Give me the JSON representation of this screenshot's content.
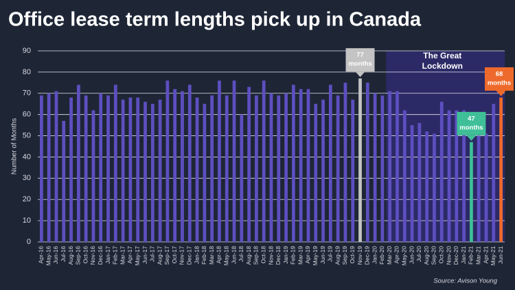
{
  "chart_data": {
    "type": "bar",
    "title": "Office lease term lengths pick up in Canada",
    "y_label": "Number of Months",
    "source": "Source: Avison Young",
    "categories": [
      "Apr-16",
      "May-16",
      "Jun-16",
      "Jul-16",
      "Aug-16",
      "Sep-16",
      "Oct-16",
      "Nov-16",
      "Dec-16",
      "Jan-17",
      "Feb-17",
      "Mar-17",
      "Apr-17",
      "May-17",
      "Jun-17",
      "Jul-17",
      "Aug-17",
      "Sep-17",
      "Oct-17",
      "Nov-17",
      "Dec-17",
      "Jan-18",
      "Feb-18",
      "Mar-18",
      "Apr-18",
      "May-18",
      "Jun-18",
      "Jul-18",
      "Aug-18",
      "Sep-18",
      "Oct-18",
      "Nov-18",
      "Dec-18",
      "Jan-19",
      "Feb-19",
      "Mar-19",
      "Apr-19",
      "May-19",
      "Jun-19",
      "Jul-19",
      "Aug-19",
      "Sep-19",
      "Oct-19",
      "Nov-19",
      "Dec-19",
      "Jan-20",
      "Feb-20",
      "Mar-20",
      "Apr-20",
      "May-20",
      "Jun-20",
      "Jul-20",
      "Aug-20",
      "Sep-20",
      "Oct-20",
      "Nov-20",
      "Dec-20",
      "Jan-21",
      "Feb-21",
      "Mar-21",
      "Apr-21",
      "May-21",
      "Jun-21"
    ],
    "values": [
      69,
      70,
      71,
      57,
      68,
      74,
      69,
      62,
      70,
      69,
      74,
      67,
      68,
      68,
      66,
      65,
      67,
      76,
      72,
      71,
      74,
      68,
      65,
      69,
      76,
      69,
      76,
      60,
      73,
      69,
      76,
      70,
      69,
      70,
      74,
      72,
      72,
      65,
      67,
      74,
      69,
      75,
      67,
      77,
      75,
      70,
      69,
      71,
      71,
      62,
      55,
      56,
      52,
      51,
      66,
      62,
      62,
      62,
      47,
      50,
      51,
      65,
      68
    ],
    "color": "#5d4fc0",
    "highlights": [
      {
        "category": "Nov-19",
        "color": "#c4c4c4",
        "text": [
          "77",
          "months"
        ]
      },
      {
        "category": "Feb-21",
        "color": "#3fbf97",
        "text": [
          "47",
          "months"
        ]
      },
      {
        "category": "Jun-21",
        "color": "#ee6a2c",
        "text": [
          "68",
          "months"
        ]
      }
    ],
    "shaded_region": {
      "from": "Mar-20",
      "to": "Jun-21",
      "color": "#2c2a66",
      "text": [
        "The Great",
        "Lockdown"
      ]
    },
    "ylim": [
      0,
      90
    ],
    "yticks": [
      0,
      10,
      20,
      30,
      40,
      50,
      60,
      70,
      80,
      90
    ],
    "grid": true
  }
}
